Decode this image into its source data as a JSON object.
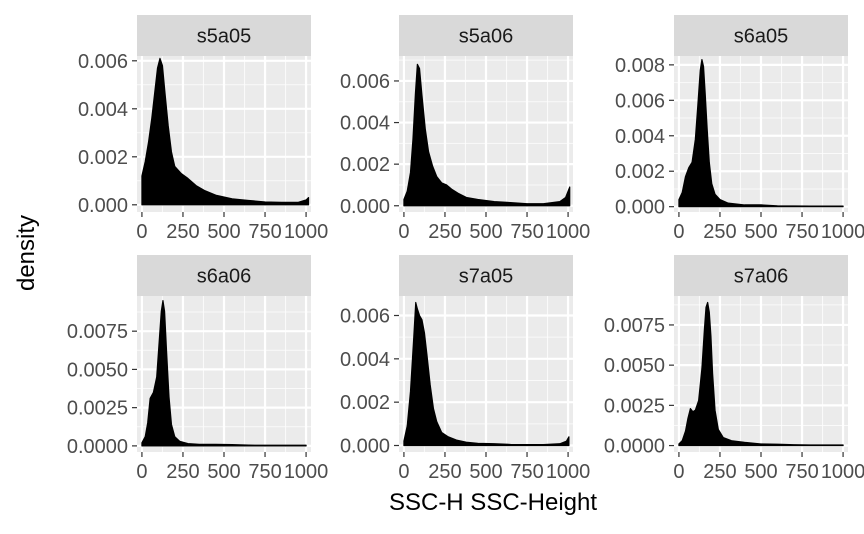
{
  "chart_data": {
    "type": "area",
    "xlabel": "SSC-H SSC-Height",
    "ylabel": "density",
    "xlim": [
      -30,
      1030
    ],
    "x_ticks": [
      0,
      250,
      500,
      750,
      1000
    ],
    "x_tick_labels": [
      "0",
      "250",
      "500",
      "750",
      "1000"
    ],
    "grid": true,
    "layout": "2x3 facets",
    "panels": [
      {
        "name": "s5a05",
        "ylim": [
          -0.0003,
          0.0062
        ],
        "y_ticks": [
          0,
          0.002,
          0.004,
          0.006
        ],
        "y_tick_labels": [
          "0.000",
          "0.002",
          "0.004",
          "0.006"
        ],
        "x": [
          0,
          20,
          40,
          60,
          80,
          95,
          110,
          125,
          140,
          160,
          180,
          200,
          240,
          280,
          330,
          380,
          450,
          550,
          650,
          750,
          850,
          950,
          1000,
          1015
        ],
        "y": [
          0.0012,
          0.0018,
          0.0026,
          0.0036,
          0.0048,
          0.0057,
          0.0061,
          0.0058,
          0.0047,
          0.0033,
          0.0022,
          0.0016,
          0.0013,
          0.0011,
          0.0008,
          0.0006,
          0.0004,
          0.00025,
          0.00018,
          0.00012,
          0.0001,
          0.0001,
          0.0002,
          0.0003
        ]
      },
      {
        "name": "s5a06",
        "ylim": [
          -0.0003,
          0.0072
        ],
        "y_ticks": [
          0,
          0.002,
          0.004,
          0.006
        ],
        "y_tick_labels": [
          "0.000",
          "0.002",
          "0.004",
          "0.006"
        ],
        "x": [
          0,
          20,
          40,
          55,
          70,
          82,
          95,
          110,
          130,
          150,
          175,
          200,
          230,
          260,
          290,
          330,
          380,
          450,
          550,
          650,
          750,
          850,
          950,
          985,
          1000,
          1010
        ],
        "y": [
          0.0003,
          0.0007,
          0.0016,
          0.0032,
          0.0054,
          0.0068,
          0.0066,
          0.0053,
          0.0037,
          0.0026,
          0.0019,
          0.0014,
          0.0011,
          0.001,
          0.0008,
          0.0006,
          0.0004,
          0.0003,
          0.0002,
          0.00015,
          0.0001,
          0.0001,
          0.0002,
          0.0004,
          0.0007,
          0.0009
        ]
      },
      {
        "name": "s6a05",
        "ylim": [
          -0.0003,
          0.0085
        ],
        "y_ticks": [
          0,
          0.002,
          0.004,
          0.006,
          0.008
        ],
        "y_tick_labels": [
          "0.000",
          "0.002",
          "0.004",
          "0.006",
          "0.008"
        ],
        "x": [
          0,
          20,
          40,
          60,
          80,
          100,
          115,
          130,
          140,
          150,
          160,
          172,
          185,
          200,
          220,
          250,
          300,
          400,
          500,
          600,
          700,
          800,
          900,
          1000
        ],
        "y": [
          0.0004,
          0.0008,
          0.0017,
          0.0022,
          0.0025,
          0.0038,
          0.0057,
          0.0077,
          0.0083,
          0.0079,
          0.0064,
          0.0044,
          0.0025,
          0.0013,
          0.0007,
          0.0004,
          0.0002,
          0.0001,
          0.0001,
          5e-05,
          4e-05,
          3e-05,
          3e-05,
          3e-05
        ]
      },
      {
        "name": "s6a06",
        "ylim": [
          -0.0004,
          0.0098
        ],
        "y_ticks": [
          0,
          0.0025,
          0.005,
          0.0075
        ],
        "y_tick_labels": [
          "0.0000",
          "0.0025",
          "0.0050",
          "0.0075"
        ],
        "x": [
          0,
          20,
          35,
          50,
          70,
          90,
          105,
          118,
          128,
          138,
          150,
          165,
          180,
          200,
          230,
          280,
          350,
          450,
          550,
          650,
          750,
          850,
          950,
          1000
        ],
        "y": [
          0.0002,
          0.0006,
          0.0015,
          0.0031,
          0.0035,
          0.0045,
          0.0068,
          0.0088,
          0.0095,
          0.0088,
          0.0062,
          0.0032,
          0.0014,
          0.0006,
          0.0003,
          0.00015,
          0.0001,
          0.0001,
          8e-05,
          5e-05,
          4e-05,
          4e-05,
          4e-05,
          4e-05
        ]
      },
      {
        "name": "s7a05",
        "ylim": [
          -0.0003,
          0.0069
        ],
        "y_ticks": [
          0,
          0.002,
          0.004,
          0.006
        ],
        "y_tick_labels": [
          "0.000",
          "0.002",
          "0.004",
          "0.006"
        ],
        "x": [
          0,
          20,
          40,
          60,
          72,
          82,
          95,
          110,
          125,
          140,
          160,
          180,
          200,
          230,
          270,
          320,
          380,
          450,
          550,
          650,
          750,
          850,
          950,
          990,
          1005
        ],
        "y": [
          0.0002,
          0.0009,
          0.0025,
          0.005,
          0.0066,
          0.0063,
          0.006,
          0.0058,
          0.0052,
          0.0042,
          0.0028,
          0.0017,
          0.0011,
          0.0006,
          0.0004,
          0.00025,
          0.00015,
          0.0001,
          8e-05,
          5e-05,
          4e-05,
          4e-05,
          8e-05,
          0.0002,
          0.0004
        ]
      },
      {
        "name": "s7a06",
        "ylim": [
          -0.0004,
          0.0093
        ],
        "y_ticks": [
          0,
          0.0025,
          0.005,
          0.0075
        ],
        "y_tick_labels": [
          "0.0000",
          "0.0025",
          "0.0050",
          "0.0075"
        ],
        "x": [
          0,
          20,
          40,
          55,
          70,
          85,
          100,
          120,
          140,
          155,
          165,
          175,
          185,
          195,
          205,
          220,
          240,
          270,
          320,
          400,
          500,
          600,
          700,
          800,
          900,
          1000
        ],
        "y": [
          0.0001,
          0.0003,
          0.0009,
          0.0017,
          0.0023,
          0.0021,
          0.0022,
          0.0028,
          0.0048,
          0.0072,
          0.0086,
          0.0089,
          0.0083,
          0.0068,
          0.0045,
          0.0022,
          0.001,
          0.0005,
          0.0003,
          0.0002,
          0.0001,
          8e-05,
          5e-05,
          4e-05,
          4e-05,
          4e-05
        ]
      }
    ]
  }
}
